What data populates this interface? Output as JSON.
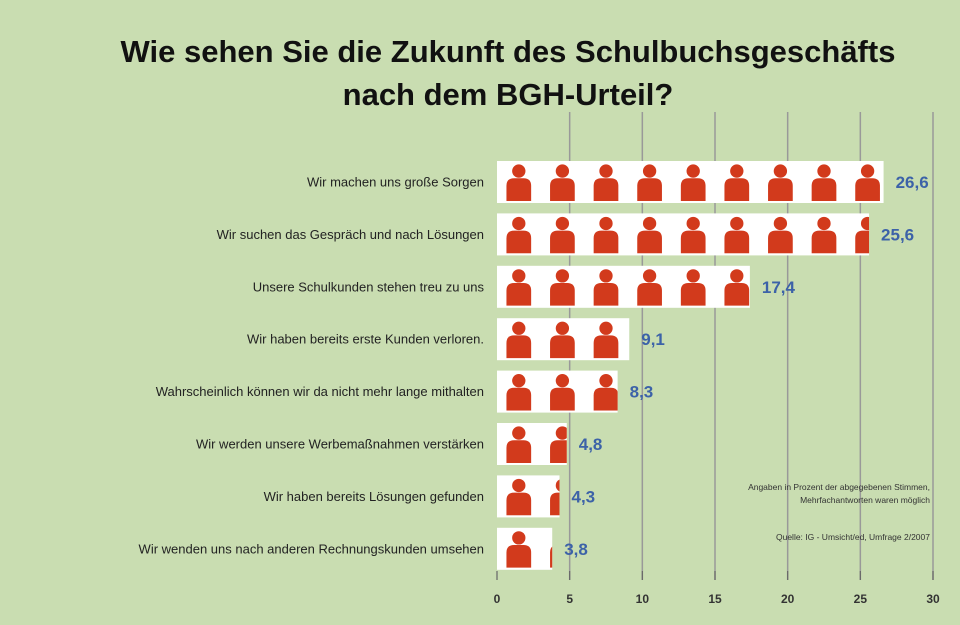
{
  "chart_data": {
    "type": "bar",
    "title": "Wie sehen Sie die Zukunft des Schulbuchsgeschäfts nach dem BGH-Urteil?",
    "title_lines": [
      "Wie sehen Sie die Zukunft des Schulbuchsgeschäfts",
      "nach dem BGH-Urteil?"
    ],
    "categories": [
      "Wir machen uns große Sorgen",
      "Wir suchen das Gespräch und nach Lösungen",
      "Unsere Schulkunden stehen treu zu uns",
      "Wir haben bereits erste Kunden verloren.",
      "Wahrscheinlich können wir da nicht mehr lange mithalten",
      "Wir werden unsere Werbemaßnahmen verstärken",
      "Wir haben bereits Lösungen gefunden",
      "Wir wenden uns nach anderen Rechnungskunden umsehen"
    ],
    "values": [
      26.6,
      25.6,
      17.4,
      9.1,
      8.3,
      4.8,
      4.3,
      3.8
    ],
    "value_labels": [
      "26,6",
      "25,6",
      "17,4",
      "9,1",
      "8,3",
      "4,8",
      "4,3",
      "3,8"
    ],
    "xlim": [
      0,
      30
    ],
    "xticks": [
      0,
      5,
      10,
      15,
      20,
      25,
      30
    ],
    "grid": true,
    "notes": [
      "Angaben in Prozent der abgegebenen Stimmen,",
      "Mehrfachantworten waren möglich",
      "Quelle: IG - Umsicht/ed, Umfrage 2/2007"
    ],
    "colors": {
      "background": "#c9ddb1",
      "icon": "#d23a1c",
      "value_label": "#3c62a8",
      "grid": "#999999"
    }
  }
}
